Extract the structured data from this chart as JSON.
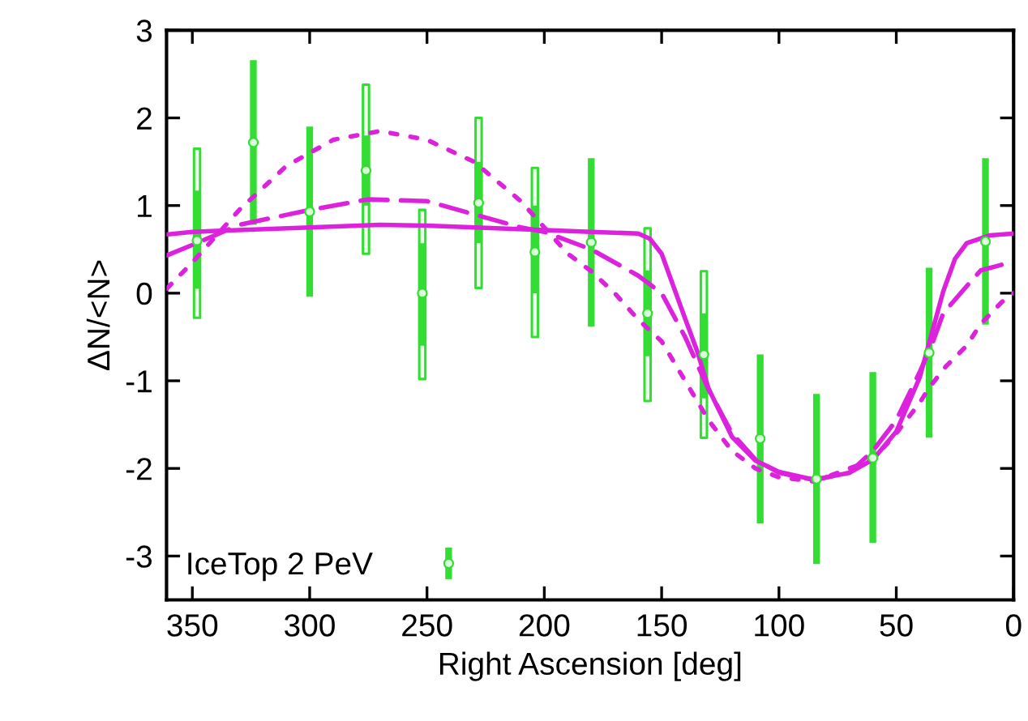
{
  "chart_data": {
    "type": "line",
    "xlabel": "Right Ascension [deg]",
    "ylabel": "ΔN/<N>",
    "xlim": [
      361,
      0
    ],
    "xticks": [
      350,
      300,
      250,
      200,
      150,
      100,
      50,
      0
    ],
    "ylim": [
      -3.5,
      3
    ],
    "yticks": [
      -3,
      -2,
      -1,
      0,
      1,
      2,
      3
    ],
    "grid": false,
    "legend": "bottom left",
    "series": [
      {
        "line_style": "solid",
        "color": "#dd22dd",
        "x": [
          361,
          350,
          300,
          270,
          250,
          200,
          180,
          160,
          155,
          150,
          145,
          140,
          135,
          130,
          120,
          110,
          100,
          85,
          70,
          60,
          50,
          40,
          35,
          30,
          25,
          20,
          10,
          0
        ],
        "values": [
          0.67,
          0.7,
          0.75,
          0.78,
          0.77,
          0.72,
          0.7,
          0.68,
          0.62,
          0.45,
          0.08,
          -0.29,
          -0.65,
          -1.09,
          -1.64,
          -1.91,
          -2.04,
          -2.13,
          -2.05,
          -1.9,
          -1.58,
          -0.96,
          -0.47,
          0.02,
          0.39,
          0.57,
          0.66,
          0.68
        ]
      },
      {
        "line_style": "dashed",
        "color": "#dd22dd",
        "x": [
          361,
          350,
          330,
          300,
          275,
          250,
          230,
          210,
          200,
          180,
          160,
          150,
          140,
          130,
          120,
          110,
          100,
          85,
          70,
          60,
          50,
          40,
          35,
          30,
          20,
          14,
          0
        ],
        "values": [
          0.43,
          0.55,
          0.78,
          0.95,
          1.07,
          1.05,
          0.9,
          0.75,
          0.7,
          0.5,
          0.2,
          0.0,
          -0.5,
          -1.1,
          -1.6,
          -1.9,
          -2.05,
          -2.13,
          -2.05,
          -1.8,
          -1.45,
          -0.9,
          -0.6,
          -0.23,
          0.08,
          0.26,
          0.36
        ]
      },
      {
        "line_style": "dotted",
        "color": "#dd22dd",
        "x": [
          361,
          350,
          330,
          310,
          290,
          270,
          250,
          230,
          210,
          200,
          190,
          180,
          170,
          160,
          150,
          140,
          130,
          120,
          110,
          100,
          85,
          70,
          60,
          50,
          40,
          36,
          29,
          20,
          14,
          5,
          0
        ],
        "values": [
          0.05,
          0.35,
          0.95,
          1.45,
          1.75,
          1.85,
          1.75,
          1.5,
          1.05,
          0.75,
          0.45,
          0.25,
          0.0,
          -0.3,
          -0.55,
          -1.0,
          -1.45,
          -1.8,
          -2.0,
          -2.1,
          -2.15,
          -2.0,
          -1.9,
          -1.6,
          -1.25,
          -1.08,
          -0.84,
          -0.6,
          -0.35,
          -0.1,
          0.0
        ]
      },
      {
        "type": "scatter",
        "name": "IceTop 2 PeV",
        "marker": "circle",
        "color": "#33dd33",
        "x": [
          348,
          324,
          300,
          276,
          252,
          228,
          204,
          180,
          156,
          132,
          108,
          84,
          60,
          36,
          12
        ],
        "values": [
          0.6,
          1.72,
          0.93,
          1.4,
          0.0,
          1.03,
          0.47,
          0.58,
          -0.23,
          -0.7,
          -1.66,
          -2.12,
          -1.88,
          -0.68,
          0.59
        ],
        "errors": [
          [
            0.05,
            1.17
          ],
          [
            0.78,
            2.66
          ],
          [
            -0.04,
            1.9
          ],
          [
            1.0,
            1.8
          ],
          [
            -0.6,
            0.57
          ],
          [
            0.57,
            1.5
          ],
          [
            0.0,
            1.0
          ],
          [
            -0.38,
            1.54
          ],
          [
            -0.72,
            0.26
          ],
          [
            -1.2,
            -0.23
          ],
          [
            -2.63,
            -0.7
          ],
          [
            -3.09,
            -1.15
          ],
          [
            -2.85,
            -0.9
          ],
          [
            -1.65,
            0.29
          ],
          [
            -0.36,
            1.54
          ]
        ],
        "lower": [
          -0.28,
          null,
          null,
          0.45,
          -0.98,
          0.06,
          -0.5,
          null,
          -1.23,
          -1.65,
          null,
          null,
          null,
          null,
          null
        ],
        "upper": [
          1.65,
          null,
          null,
          2.38,
          0.95,
          2.0,
          1.43,
          null,
          0.74,
          0.25,
          null,
          null,
          null,
          null,
          null
        ]
      }
    ]
  }
}
